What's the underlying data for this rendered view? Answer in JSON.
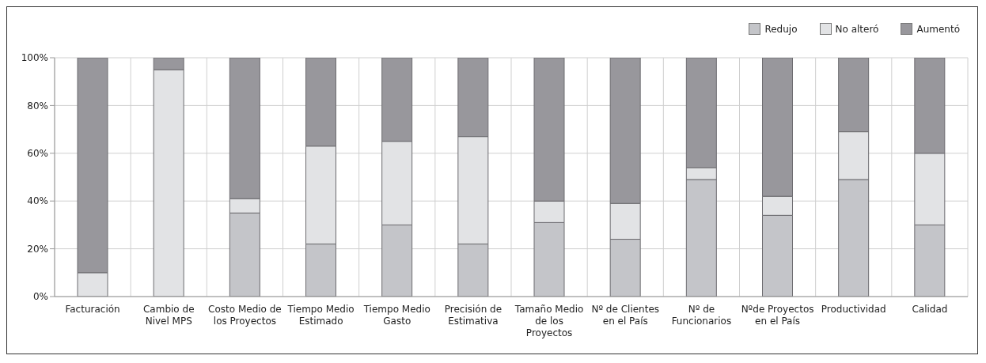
{
  "chart_data": {
    "type": "bar",
    "stacked": true,
    "categories": [
      "Facturación",
      "Cambio de Nivel MPS",
      "Costo Medio de los Proyectos",
      "Tiempo Medio Estimado",
      "Tiempo Medio Gasto",
      "Precisión de Estimativa",
      "Tamaño Medio de los Proyectos",
      "Nº de Clientes en el País",
      "Nº de Funcionarios",
      "Nºde Proyectos en el País",
      "Productividad",
      "Calidad"
    ],
    "series": [
      {
        "name": "Redujo",
        "color": "#c4c5c9",
        "values": [
          0,
          0,
          35,
          22,
          30,
          22,
          31,
          24,
          49,
          34,
          49,
          30
        ]
      },
      {
        "name": "No alteró",
        "color": "#e2e3e5",
        "values": [
          10,
          95,
          6,
          41,
          35,
          45,
          9,
          15,
          5,
          8,
          20,
          30
        ]
      },
      {
        "name": "Aumentó",
        "color": "#98979c",
        "values": [
          90,
          5,
          59,
          37,
          35,
          33,
          60,
          61,
          46,
          58,
          31,
          40
        ]
      }
    ],
    "ylim": [
      0,
      100
    ],
    "yticks": [
      {
        "value": 0,
        "label": "0%"
      },
      {
        "value": 20,
        "label": "20%"
      },
      {
        "value": 40,
        "label": "40%"
      },
      {
        "value": 60,
        "label": "60%"
      },
      {
        "value": 80,
        "label": "80%"
      },
      {
        "value": 100,
        "label": "100%"
      }
    ],
    "grid": true,
    "legend": "top right"
  }
}
